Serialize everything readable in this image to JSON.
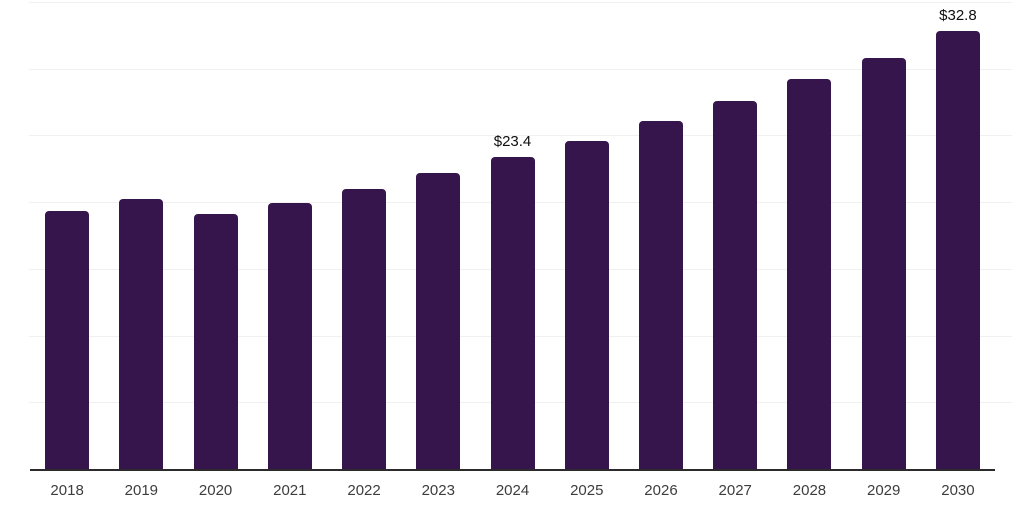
{
  "chart_data": {
    "type": "bar",
    "title": "",
    "xlabel": "",
    "ylabel": "",
    "categories": [
      "2018",
      "2019",
      "2020",
      "2021",
      "2022",
      "2023",
      "2024",
      "2025",
      "2026",
      "2027",
      "2028",
      "2029",
      "2030"
    ],
    "values": [
      19.3,
      20.2,
      19.1,
      19.9,
      21.0,
      22.2,
      23.4,
      24.6,
      26.1,
      27.6,
      29.2,
      30.8,
      32.8
    ],
    "value_labels": {
      "2024": "$23.4",
      "2030": "$32.8"
    },
    "unit_prefix": "$",
    "ylim": [
      0,
      35
    ],
    "gridline_step": 5,
    "grid": "horizontal-only",
    "legend": "none",
    "y_axis_labels_visible": false,
    "colors": {
      "bar": "#35154b",
      "gridline": "#f0f0f0",
      "axis_line": "#2b2b2b",
      "tick_label": "#3d3d3d",
      "value_label": "#0f0f0f",
      "background": "#ffffff"
    }
  }
}
